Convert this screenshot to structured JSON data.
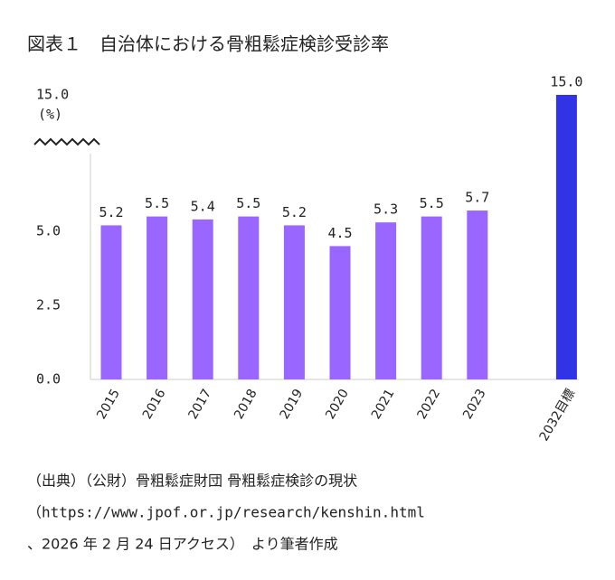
{
  "chart_data": {
    "type": "bar",
    "title": "図表１　自治体における骨粗鬆症検診受診率",
    "y_unit": "(%)",
    "categories": [
      "2015",
      "2016",
      "2017",
      "2018",
      "2019",
      "2020",
      "2021",
      "2022",
      "2023",
      "2032目標"
    ],
    "values": [
      5.2,
      5.5,
      5.4,
      5.5,
      5.2,
      4.5,
      5.3,
      5.5,
      5.7,
      15.0
    ],
    "value_labels": [
      "5.2",
      "5.5",
      "5.4",
      "5.5",
      "5.2",
      "4.5",
      "5.3",
      "5.5",
      "5.7",
      "15.0"
    ],
    "colors": [
      "#9966ff",
      "#9966ff",
      "#9966ff",
      "#9966ff",
      "#9966ff",
      "#9966ff",
      "#9966ff",
      "#9966ff",
      "#9966ff",
      "#3333e6"
    ],
    "ylim": [
      0,
      15
    ],
    "yticks": [
      {
        "value": 0,
        "label": "0.0"
      },
      2.5,
      {
        "value": 5,
        "label": "5.0"
      },
      {
        "value": 15,
        "label": "15.0"
      }
    ],
    "axis_break": true,
    "source": [
      "（出典）（公財）骨粗鬆症財団 骨粗鬆症検診の現状",
      "（https://www.jpof.or.jp/research/kenshin.html",
      "、2026 年 2 月 24 日アクセス）　より筆者作成"
    ]
  }
}
